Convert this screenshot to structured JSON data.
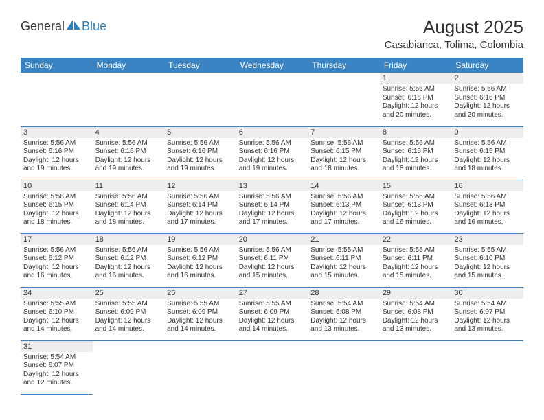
{
  "logo": {
    "text1": "General",
    "text2": "Blue"
  },
  "title": "August 2025",
  "location": "Casabianca, Tolima, Colombia",
  "colors": {
    "header_bg": "#3a84c4",
    "header_text": "#ffffff",
    "daynum_bg": "#eeeeee",
    "border": "#3a84c4",
    "text": "#333333",
    "logo_blue": "#2d7fbc"
  },
  "weekdays": [
    "Sunday",
    "Monday",
    "Tuesday",
    "Wednesday",
    "Thursday",
    "Friday",
    "Saturday"
  ],
  "weeks": [
    [
      null,
      null,
      null,
      null,
      null,
      {
        "n": "1",
        "sr": "5:56 AM",
        "ss": "6:16 PM",
        "dl": "12 hours and 20 minutes."
      },
      {
        "n": "2",
        "sr": "5:56 AM",
        "ss": "6:16 PM",
        "dl": "12 hours and 20 minutes."
      }
    ],
    [
      {
        "n": "3",
        "sr": "5:56 AM",
        "ss": "6:16 PM",
        "dl": "12 hours and 19 minutes."
      },
      {
        "n": "4",
        "sr": "5:56 AM",
        "ss": "6:16 PM",
        "dl": "12 hours and 19 minutes."
      },
      {
        "n": "5",
        "sr": "5:56 AM",
        "ss": "6:16 PM",
        "dl": "12 hours and 19 minutes."
      },
      {
        "n": "6",
        "sr": "5:56 AM",
        "ss": "6:16 PM",
        "dl": "12 hours and 19 minutes."
      },
      {
        "n": "7",
        "sr": "5:56 AM",
        "ss": "6:15 PM",
        "dl": "12 hours and 18 minutes."
      },
      {
        "n": "8",
        "sr": "5:56 AM",
        "ss": "6:15 PM",
        "dl": "12 hours and 18 minutes."
      },
      {
        "n": "9",
        "sr": "5:56 AM",
        "ss": "6:15 PM",
        "dl": "12 hours and 18 minutes."
      }
    ],
    [
      {
        "n": "10",
        "sr": "5:56 AM",
        "ss": "6:15 PM",
        "dl": "12 hours and 18 minutes."
      },
      {
        "n": "11",
        "sr": "5:56 AM",
        "ss": "6:14 PM",
        "dl": "12 hours and 18 minutes."
      },
      {
        "n": "12",
        "sr": "5:56 AM",
        "ss": "6:14 PM",
        "dl": "12 hours and 17 minutes."
      },
      {
        "n": "13",
        "sr": "5:56 AM",
        "ss": "6:14 PM",
        "dl": "12 hours and 17 minutes."
      },
      {
        "n": "14",
        "sr": "5:56 AM",
        "ss": "6:13 PM",
        "dl": "12 hours and 17 minutes."
      },
      {
        "n": "15",
        "sr": "5:56 AM",
        "ss": "6:13 PM",
        "dl": "12 hours and 16 minutes."
      },
      {
        "n": "16",
        "sr": "5:56 AM",
        "ss": "6:13 PM",
        "dl": "12 hours and 16 minutes."
      }
    ],
    [
      {
        "n": "17",
        "sr": "5:56 AM",
        "ss": "6:12 PM",
        "dl": "12 hours and 16 minutes."
      },
      {
        "n": "18",
        "sr": "5:56 AM",
        "ss": "6:12 PM",
        "dl": "12 hours and 16 minutes."
      },
      {
        "n": "19",
        "sr": "5:56 AM",
        "ss": "6:12 PM",
        "dl": "12 hours and 16 minutes."
      },
      {
        "n": "20",
        "sr": "5:56 AM",
        "ss": "6:11 PM",
        "dl": "12 hours and 15 minutes."
      },
      {
        "n": "21",
        "sr": "5:55 AM",
        "ss": "6:11 PM",
        "dl": "12 hours and 15 minutes."
      },
      {
        "n": "22",
        "sr": "5:55 AM",
        "ss": "6:11 PM",
        "dl": "12 hours and 15 minutes."
      },
      {
        "n": "23",
        "sr": "5:55 AM",
        "ss": "6:10 PM",
        "dl": "12 hours and 15 minutes."
      }
    ],
    [
      {
        "n": "24",
        "sr": "5:55 AM",
        "ss": "6:10 PM",
        "dl": "12 hours and 14 minutes."
      },
      {
        "n": "25",
        "sr": "5:55 AM",
        "ss": "6:09 PM",
        "dl": "12 hours and 14 minutes."
      },
      {
        "n": "26",
        "sr": "5:55 AM",
        "ss": "6:09 PM",
        "dl": "12 hours and 14 minutes."
      },
      {
        "n": "27",
        "sr": "5:55 AM",
        "ss": "6:09 PM",
        "dl": "12 hours and 14 minutes."
      },
      {
        "n": "28",
        "sr": "5:54 AM",
        "ss": "6:08 PM",
        "dl": "12 hours and 13 minutes."
      },
      {
        "n": "29",
        "sr": "5:54 AM",
        "ss": "6:08 PM",
        "dl": "12 hours and 13 minutes."
      },
      {
        "n": "30",
        "sr": "5:54 AM",
        "ss": "6:07 PM",
        "dl": "12 hours and 13 minutes."
      }
    ],
    [
      {
        "n": "31",
        "sr": "5:54 AM",
        "ss": "6:07 PM",
        "dl": "12 hours and 12 minutes."
      },
      null,
      null,
      null,
      null,
      null,
      null
    ]
  ],
  "labels": {
    "sunrise": "Sunrise:",
    "sunset": "Sunset:",
    "daylight": "Daylight:"
  }
}
